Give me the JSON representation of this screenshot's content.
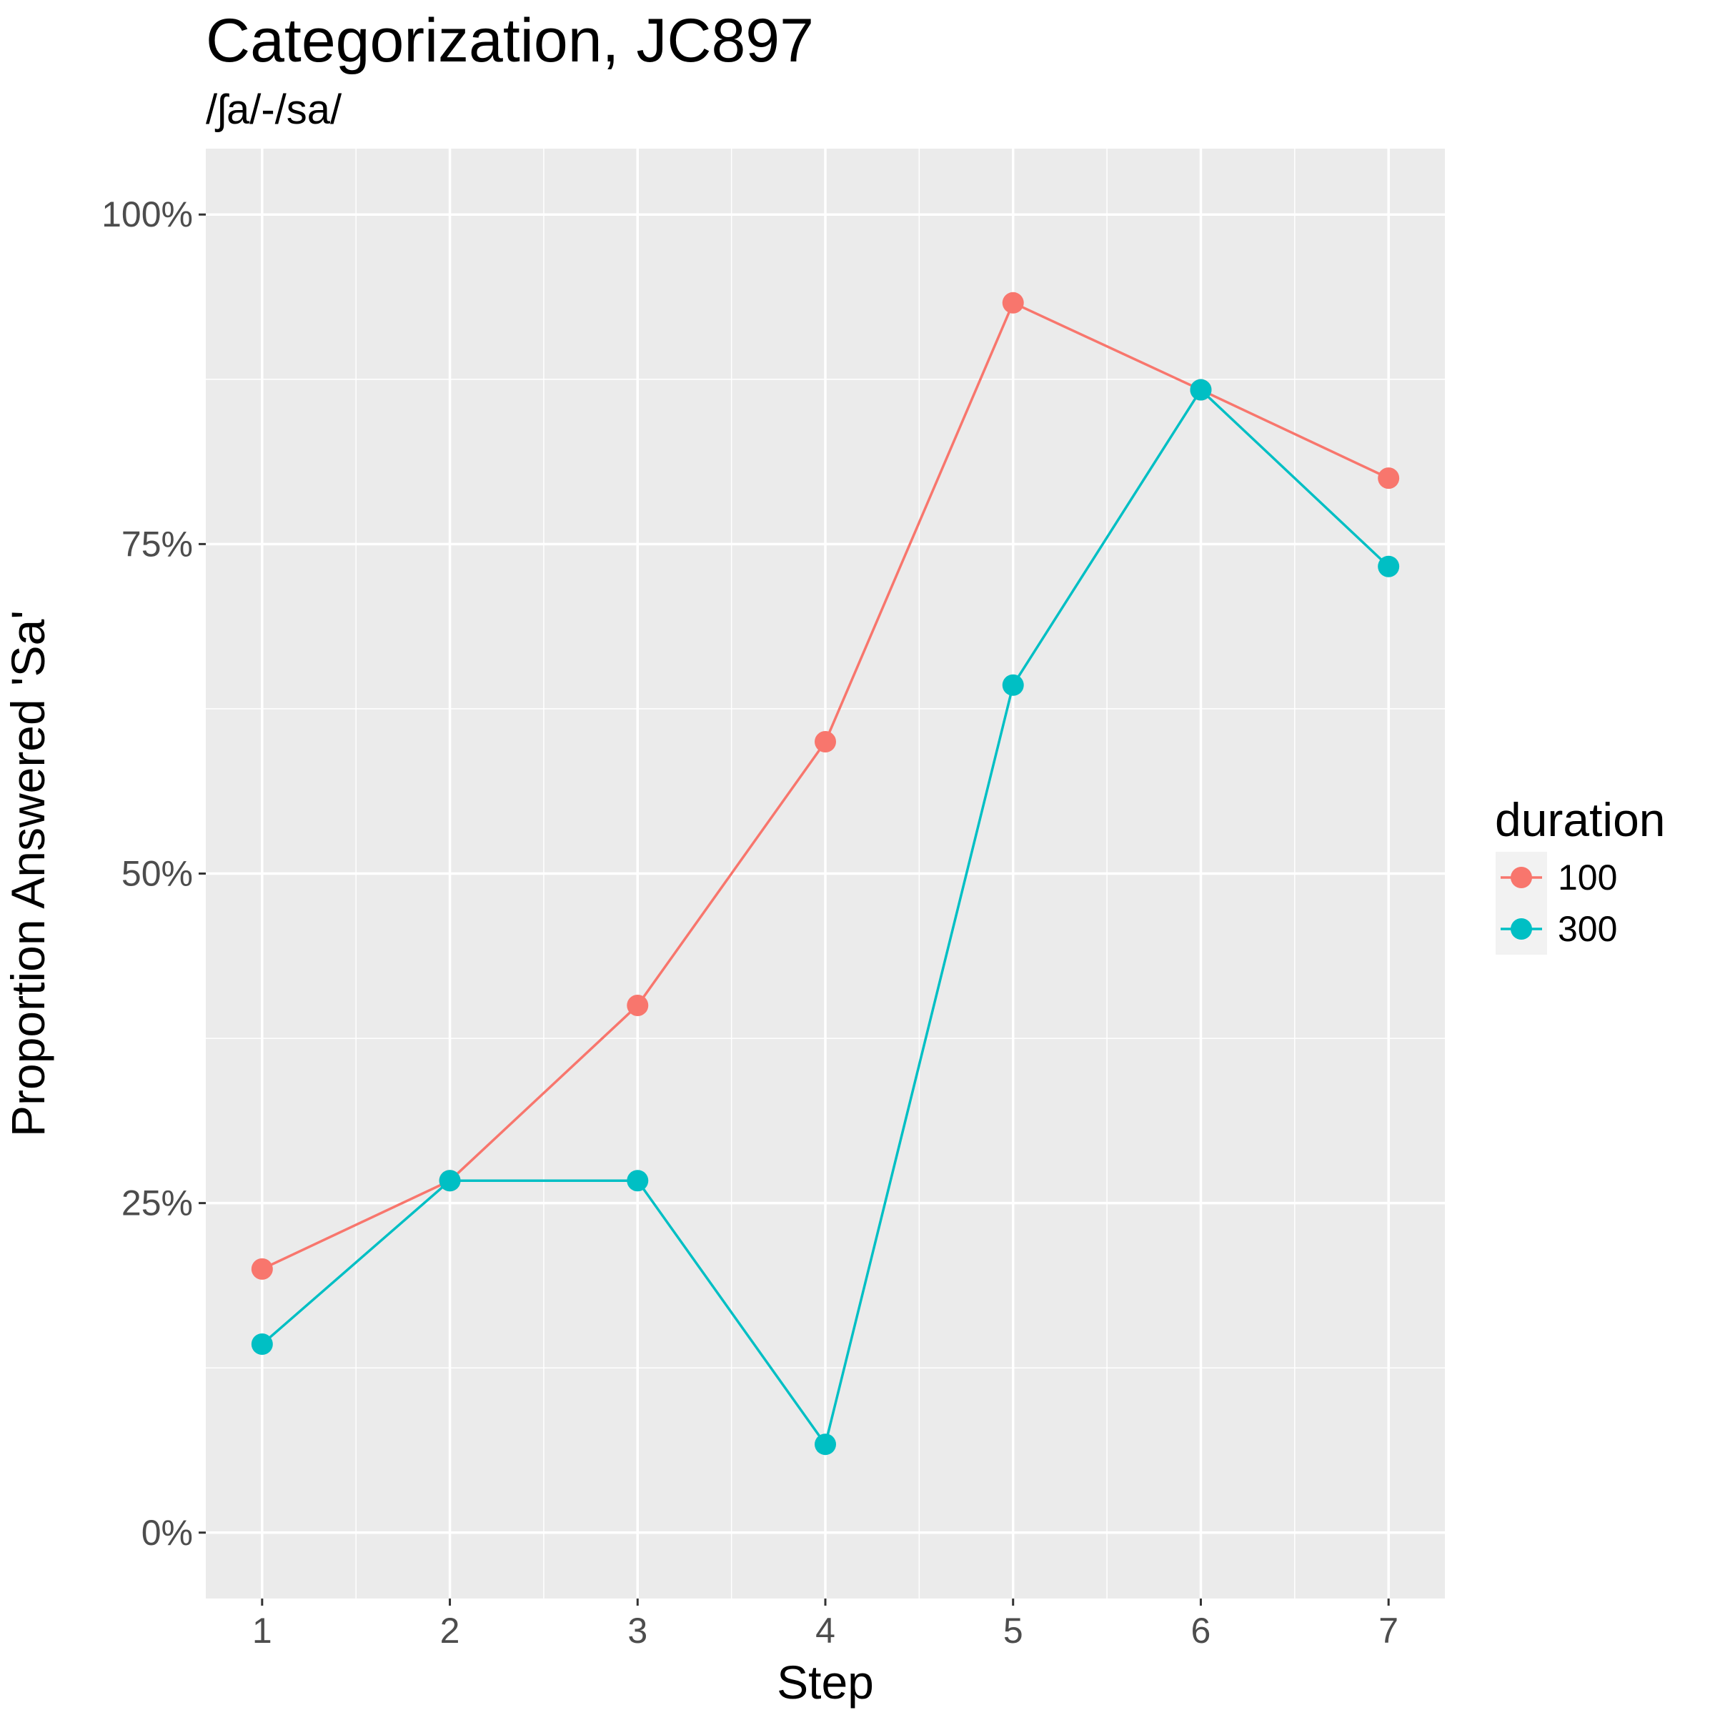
{
  "chart_data": {
    "type": "line",
    "title": "Categorization, JC897",
    "subtitle": "/ʃa/-/sa/",
    "xlabel": "Step",
    "ylabel": "Proportion Answered 'Sa'",
    "x": [
      1,
      2,
      3,
      4,
      5,
      6,
      7
    ],
    "x_ticks": [
      "1",
      "2",
      "3",
      "4",
      "5",
      "6",
      "7"
    ],
    "xlim": [
      0.7,
      7.3
    ],
    "ylim": [
      -0.05,
      1.05
    ],
    "y_ticks": [
      0,
      0.25,
      0.5,
      0.75,
      1.0
    ],
    "y_tick_labels": [
      "0%",
      "25%",
      "50%",
      "75%",
      "100%"
    ],
    "grid": true,
    "legend": {
      "title": "duration",
      "placement": "right"
    },
    "series": [
      {
        "name": "100",
        "color": "#F8766D",
        "values": [
          0.2,
          0.267,
          0.4,
          0.6,
          0.933,
          0.867,
          0.8
        ]
      },
      {
        "name": "300",
        "color": "#00BFC4",
        "values": [
          0.143,
          0.267,
          0.267,
          0.067,
          0.643,
          0.867,
          0.733
        ]
      }
    ]
  },
  "colors": {
    "panel_background": "#EBEBEB",
    "grid_line": "#FFFFFF",
    "tick_text": "#4D4D4D"
  }
}
